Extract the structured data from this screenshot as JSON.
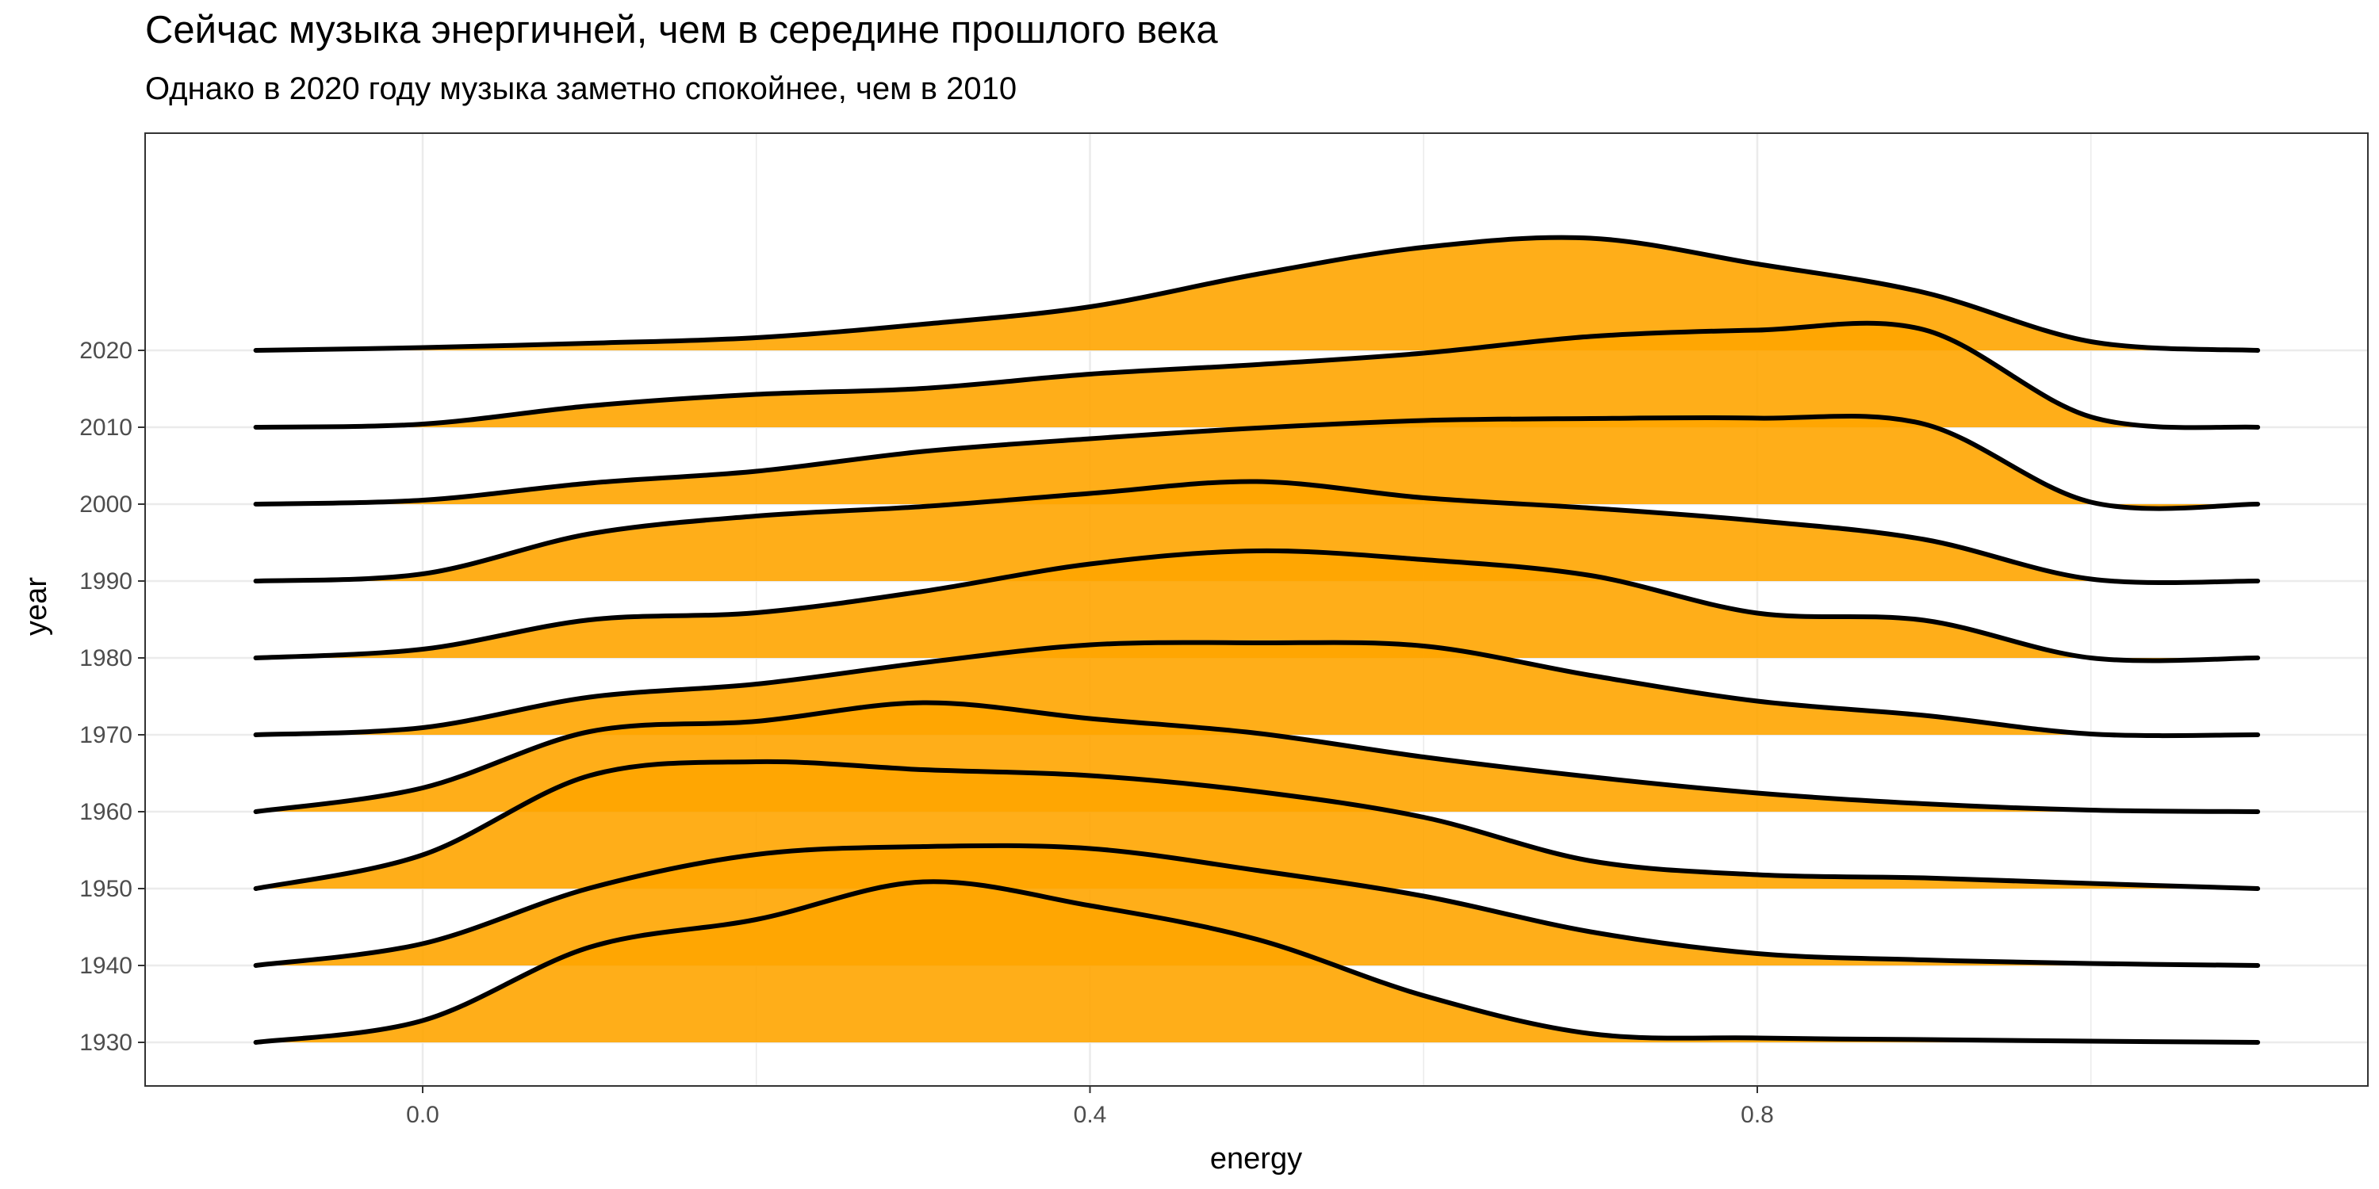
{
  "chart_data": {
    "type": "ridgeline",
    "title": "Сейчас музыка энергичней, чем в середине прошлого века",
    "subtitle": "Однако в 2020 году музыка заметно спокойнее, чем в 2010",
    "xlabel": "energy",
    "ylabel": "year",
    "xlim": [
      -0.25,
      1.15
    ],
    "x_ticks": [
      0.0,
      0.4,
      0.8
    ],
    "x_tick_labels": [
      "0.0",
      "0.4",
      "0.8"
    ],
    "y_tick_labels": [
      "1930",
      "1940",
      "1950",
      "1960",
      "1970",
      "1980",
      "1990",
      "2000",
      "2010",
      "2020"
    ],
    "fill_color": "#FFA500",
    "line_color": "#000000",
    "grid": true,
    "x_grid": [
      -0.2,
      0.0,
      0.2,
      0.4,
      0.6,
      0.8,
      1.0
    ],
    "density_x": [
      -0.1,
      0.0,
      0.1,
      0.2,
      0.3,
      0.4,
      0.5,
      0.6,
      0.7,
      0.8,
      0.9,
      1.0,
      1.1
    ],
    "series": [
      {
        "name": "1930",
        "density": [
          0.0,
          0.55,
          2.4,
          3.1,
          4.05,
          3.45,
          2.6,
          1.18,
          0.22,
          0.11,
          0.07,
          0.03,
          0.0
        ]
      },
      {
        "name": "1940",
        "density": [
          0.0,
          0.55,
          1.95,
          2.8,
          3.0,
          2.95,
          2.4,
          1.75,
          0.85,
          0.3,
          0.14,
          0.05,
          0.0
        ]
      },
      {
        "name": "1950",
        "density": [
          0.0,
          0.85,
          2.85,
          3.2,
          3.0,
          2.85,
          2.45,
          1.8,
          0.7,
          0.35,
          0.27,
          0.13,
          0.0
        ]
      },
      {
        "name": "1960",
        "density": [
          0.0,
          0.6,
          2.02,
          2.28,
          2.75,
          2.35,
          1.98,
          1.38,
          0.88,
          0.47,
          0.2,
          0.04,
          0.0
        ]
      },
      {
        "name": "1970",
        "density": [
          0.0,
          0.18,
          0.95,
          1.28,
          1.82,
          2.27,
          2.32,
          2.24,
          1.5,
          0.85,
          0.49,
          0.02,
          0.0
        ]
      },
      {
        "name": "1980",
        "density": [
          0.0,
          0.22,
          0.96,
          1.14,
          1.68,
          2.37,
          2.7,
          2.48,
          2.08,
          1.13,
          0.95,
          0.0,
          0.0
        ]
      },
      {
        "name": "1990",
        "density": [
          0.0,
          0.18,
          1.19,
          1.64,
          1.88,
          2.21,
          2.51,
          2.1,
          1.84,
          1.52,
          1.05,
          0.05,
          0.0
        ]
      },
      {
        "name": "2000",
        "density": [
          0.0,
          0.1,
          0.53,
          0.83,
          1.33,
          1.65,
          1.92,
          2.11,
          2.16,
          2.17,
          2.02,
          0.05,
          0.0
        ]
      },
      {
        "name": "2010",
        "density": [
          0.0,
          0.08,
          0.54,
          0.83,
          0.98,
          1.34,
          1.58,
          1.87,
          2.29,
          2.45,
          2.46,
          0.26,
          0.0
        ]
      },
      {
        "name": "2020",
        "density": [
          0.0,
          0.07,
          0.18,
          0.32,
          0.66,
          1.1,
          1.92,
          2.6,
          2.83,
          2.18,
          1.46,
          0.22,
          0.0
        ]
      }
    ]
  }
}
